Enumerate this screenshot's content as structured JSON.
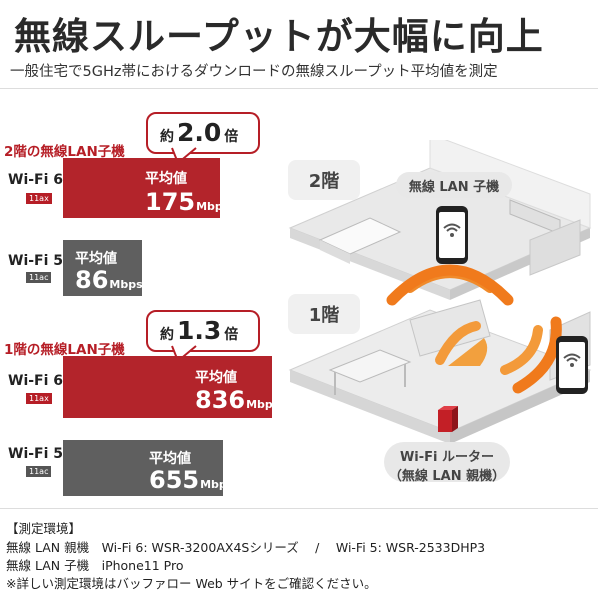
{
  "title": "無線スループットが大幅に向上",
  "subtitle": "一般住宅で5GHz帯におけるダウンロードの無線スループット平均値を測定",
  "floor2": {
    "label": "2階の無線LAN子機",
    "ratio_prefix": "約",
    "ratio": "2.0",
    "ratio_suffix": "倍",
    "wifi6": {
      "name": "Wi-Fi 6",
      "tag": "11ax",
      "caption": "平均値",
      "value": "175",
      "unit": "Mbps"
    },
    "wifi5": {
      "name": "Wi-Fi 5",
      "tag": "11ac",
      "caption": "平均値",
      "value": "86",
      "unit": "Mbps"
    }
  },
  "floor1": {
    "label": "1階の無線LAN子機",
    "ratio_prefix": "約",
    "ratio": "1.3",
    "ratio_suffix": "倍",
    "wifi6": {
      "name": "Wi-Fi 6",
      "tag": "11ax",
      "caption": "平均値",
      "value": "836",
      "unit": "Mbps"
    },
    "wifi5": {
      "name": "Wi-Fi 5",
      "tag": "11ac",
      "caption": "平均値",
      "value": "655",
      "unit": "Mbps"
    }
  },
  "house": {
    "floor2_label": "2階",
    "floor1_label": "1階",
    "client_label": "無線 LAN 子機",
    "router_line1": "Wi-Fi ルーター",
    "router_line2": "（無線 LAN 親機）"
  },
  "environment": {
    "heading": "【測定環境】",
    "line1": "無線 LAN 親機　Wi-Fi 6: WSR-3200AX4Sシリーズ　 /　 Wi-Fi 5: WSR-2533DHP3",
    "line2": "無線 LAN 子機　iPhone11 Pro",
    "note": "※詳しい測定環境はバッファロー Web サイトをご確認ください。"
  },
  "colors": {
    "accent_red": "#b61e26",
    "bar_gray": "#5f5f5f",
    "signal_orange": "#f07a1c"
  }
}
